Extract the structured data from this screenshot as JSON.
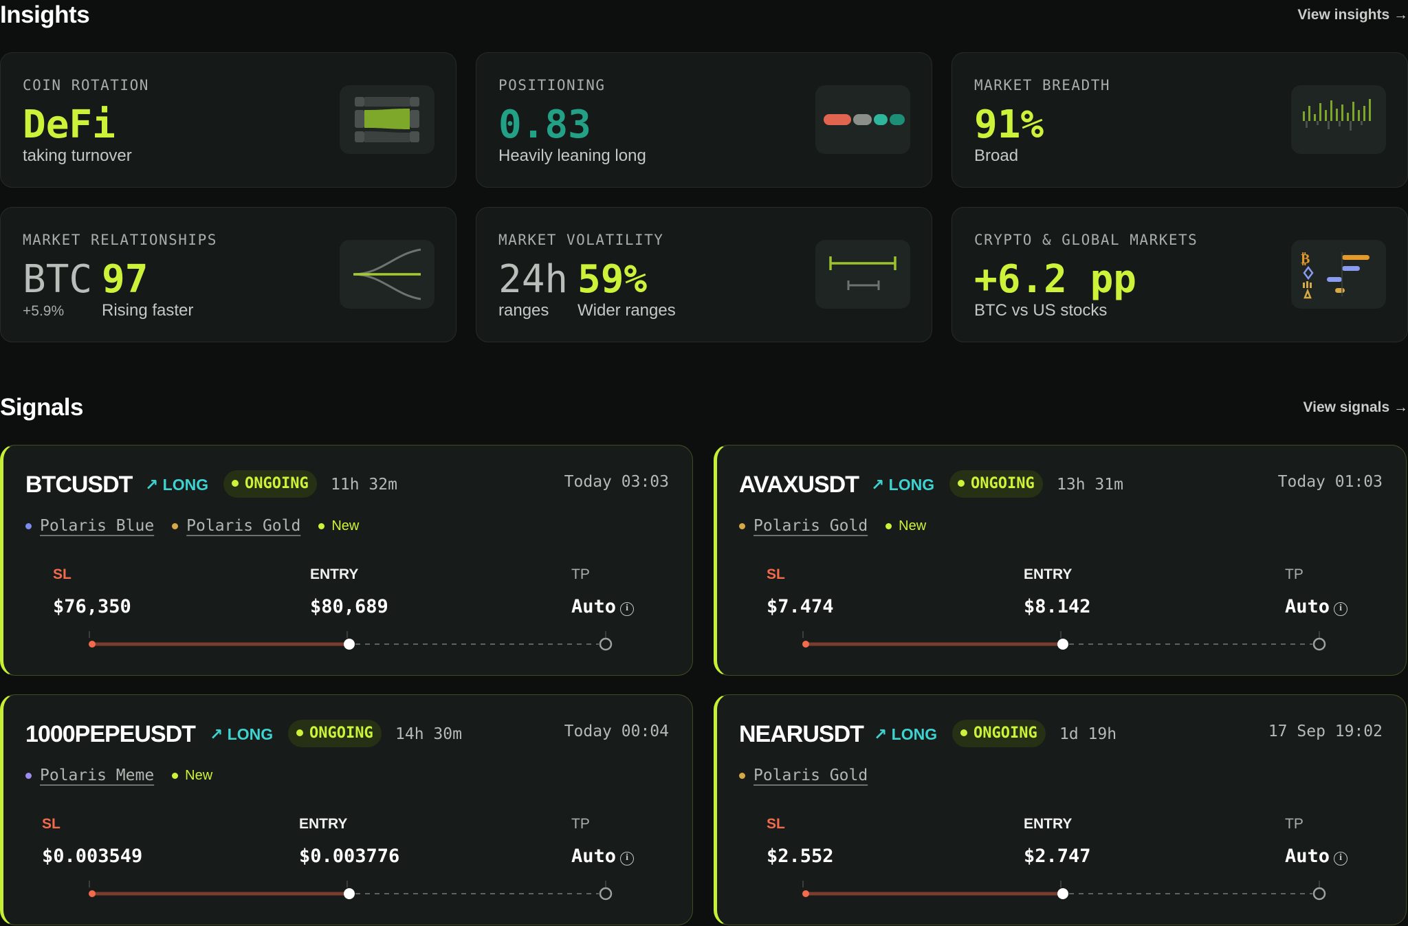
{
  "insights": {
    "title": "Insights",
    "view_link": "View insights →",
    "cards": [
      {
        "label": "COIN ROTATION",
        "value": "DeFi",
        "sub": "taking turnover"
      },
      {
        "label": "POSITIONING",
        "value": "0.83",
        "sub": "Heavily leaning long"
      },
      {
        "label": "MARKET BREADTH",
        "value": "91%",
        "sub": "Broad"
      },
      {
        "label": "MARKET RELATIONSHIPS",
        "prefix": "BTC",
        "value": "97",
        "prefix_sub": "+5.9%",
        "sub": "Rising faster"
      },
      {
        "label": "MARKET VOLATILITY",
        "prefix": "24h",
        "value": "59%",
        "prefix_sub": "ranges",
        "sub": "Wider ranges"
      },
      {
        "label": "CRYPTO & GLOBAL MARKETS",
        "value": "+6.2 pp",
        "sub": "BTC vs US stocks"
      }
    ]
  },
  "signals": {
    "title": "Signals",
    "view_link": "View signals →",
    "cards": [
      {
        "symbol": "BTCUSDT",
        "direction": "LONG",
        "status": "ONGOING",
        "elapsed": "11h 32m",
        "timestamp": "Today 03:03",
        "tags": [
          {
            "name": "Polaris Blue",
            "color": "#7b8cf0"
          },
          {
            "name": "Polaris Gold",
            "color": "#d7a846"
          }
        ],
        "new_label": "New",
        "sl_label": "SL",
        "sl": "$76,350",
        "entry_label": "ENTRY",
        "entry": "$80,689",
        "tp_label": "TP",
        "tp": "Auto"
      },
      {
        "symbol": "AVAXUSDT",
        "direction": "LONG",
        "status": "ONGOING",
        "elapsed": "13h 31m",
        "timestamp": "Today 01:03",
        "tags": [
          {
            "name": "Polaris Gold",
            "color": "#d7a846"
          }
        ],
        "new_label": "New",
        "sl_label": "SL",
        "sl": "$7.474",
        "entry_label": "ENTRY",
        "entry": "$8.142",
        "tp_label": "TP",
        "tp": "Auto"
      },
      {
        "symbol": "1000PEPEUSDT",
        "direction": "LONG",
        "status": "ONGOING",
        "elapsed": "14h 30m",
        "timestamp": "Today 00:04",
        "tags": [
          {
            "name": "Polaris Meme",
            "color": "#9b8cf0"
          }
        ],
        "new_label": "New",
        "sl_label": "SL",
        "sl": "$0.003549",
        "entry_label": "ENTRY",
        "entry": "$0.003776",
        "tp_label": "TP",
        "tp": "Auto"
      },
      {
        "symbol": "NEARUSDT",
        "direction": "LONG",
        "status": "ONGOING",
        "elapsed": "1d 19h",
        "timestamp": "17 Sep 19:02",
        "tags": [
          {
            "name": "Polaris Gold",
            "color": "#d7a846"
          }
        ],
        "new_label": "",
        "sl_label": "SL",
        "sl": "$2.552",
        "entry_label": "ENTRY",
        "entry": "$2.747",
        "tp_label": "TP",
        "tp": "Auto"
      }
    ]
  },
  "icons": {
    "coin_rotation": "sankey-flow-icon",
    "positioning": "ratio-pills-icon",
    "breadth": "bars-icon",
    "relationships": "diverging-lines-icon",
    "volatility": "range-bars-icon",
    "global": "asset-bars-icon",
    "direction": "arrow-up-right-icon",
    "info": "info-icon"
  },
  "colors": {
    "accent_lime": "#ccf33a",
    "teal": "#22a187",
    "long_cyan": "#3ed3d1",
    "sl_red": "#f46a4c",
    "background": "#0c0f0e"
  }
}
